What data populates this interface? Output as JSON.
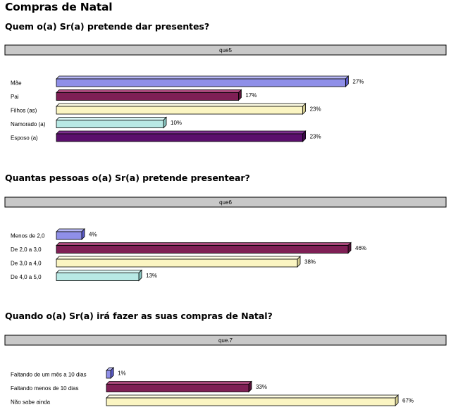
{
  "title": "Compras de Natal",
  "colors": {
    "header_bar": "#c8c8c8",
    "palette": [
      {
        "front": "#8f8fe8",
        "top": "#b8b8f5",
        "side": "#5c5cc8"
      },
      {
        "front": "#7f1f55",
        "top": "#a8487a",
        "side": "#561338"
      },
      {
        "front": "#fbf5c2",
        "top": "#fffde4",
        "side": "#d4cd93"
      },
      {
        "front": "#b8e9e5",
        "top": "#d9f6f4",
        "side": "#87c3be"
      },
      {
        "front": "#5a0f6c",
        "top": "#7e2f90",
        "side": "#3a0848"
      }
    ]
  },
  "chart_data": [
    {
      "type": "bar",
      "orientation": "horizontal",
      "question": "Quem o(a) Sr(a) pretende dar presentes?",
      "variable": "que5",
      "categories": [
        "Mãe",
        "Pai",
        "Filhos (as)",
        "Namorado (a)",
        "Esposo (a)"
      ],
      "values": [
        27,
        17,
        23,
        10,
        23
      ],
      "value_labels": [
        "27%",
        "17%",
        "23%",
        "10%",
        "23%"
      ],
      "unit": "%"
    },
    {
      "type": "bar",
      "orientation": "horizontal",
      "question": "Quantas pessoas o(a) Sr(a) pretende presentear?",
      "variable": "que6",
      "categories": [
        "Menos de 2,0",
        "De 2,0 a 3,0",
        "De 3,0 a 4,0",
        "De 4,0 a 5,0"
      ],
      "values": [
        4,
        46,
        38,
        13
      ],
      "value_labels": [
        "4%",
        "46%",
        "38%",
        "13%"
      ],
      "unit": "%"
    },
    {
      "type": "bar",
      "orientation": "horizontal",
      "question": "Quando o(a) Sr(a) irá fazer as suas compras de Natal?",
      "variable": "que.7",
      "categories": [
        "Faltando de um mês a 10 dias",
        "Faltando menos de 10 dias",
        "Não sabe ainda"
      ],
      "values": [
        1,
        33,
        67
      ],
      "value_labels": [
        "1%",
        "33%",
        "67%"
      ],
      "unit": "%"
    }
  ]
}
